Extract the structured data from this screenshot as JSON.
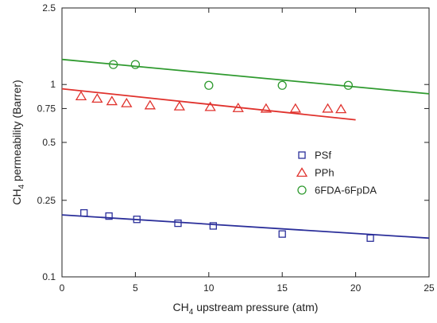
{
  "chart_data": {
    "type": "scatter",
    "xlabel": {
      "main": "CH",
      "sub": "4",
      "rest": " upstream pressure (atm)"
    },
    "ylabel": {
      "main": "CH",
      "sub": "4",
      "rest": " permeability (Barrer)"
    },
    "xlim": [
      0,
      25
    ],
    "ylim": [
      0.1,
      2.5
    ],
    "yscale": "log",
    "x_ticks": [
      0,
      5,
      10,
      15,
      20,
      25
    ],
    "x_tick_labels": [
      "0",
      "5",
      "10",
      "15",
      "20",
      "25"
    ],
    "y_ticks": [
      0.1,
      0.25,
      0.5,
      0.75,
      1,
      2.5
    ],
    "y_tick_labels": [
      "0.1",
      "0.25",
      "0.5",
      "0.75",
      "1",
      "2.5"
    ],
    "grid": false,
    "legend_position": "right-center",
    "series": [
      {
        "name": "PSf",
        "marker": "square",
        "color": "#2b2f9a",
        "points": [
          [
            1.5,
            0.215
          ],
          [
            3.2,
            0.207
          ],
          [
            5.1,
            0.199
          ],
          [
            7.9,
            0.19
          ],
          [
            10.3,
            0.184
          ],
          [
            15.0,
            0.167
          ],
          [
            21.0,
            0.159
          ]
        ],
        "fit": [
          [
            0,
            0.21
          ],
          [
            25,
            0.159
          ]
        ]
      },
      {
        "name": "PPh",
        "marker": "triangle",
        "color": "#e0322d",
        "points": [
          [
            1.3,
            0.87
          ],
          [
            2.4,
            0.845
          ],
          [
            3.4,
            0.82
          ],
          [
            4.4,
            0.8
          ],
          [
            6.0,
            0.78
          ],
          [
            8.0,
            0.77
          ],
          [
            10.1,
            0.765
          ],
          [
            12.0,
            0.755
          ],
          [
            13.9,
            0.75
          ],
          [
            15.9,
            0.75
          ],
          [
            18.1,
            0.75
          ],
          [
            19.0,
            0.745
          ]
        ],
        "fit": [
          [
            0,
            0.95
          ],
          [
            20,
            0.655
          ]
        ]
      },
      {
        "name": "6FDA-6FpDA",
        "marker": "circle",
        "color": "#2f9a2f",
        "points": [
          [
            3.5,
            1.27
          ],
          [
            5.0,
            1.27
          ],
          [
            10.0,
            0.99
          ],
          [
            15.0,
            0.99
          ],
          [
            19.5,
            0.99
          ]
        ],
        "fit": [
          [
            0,
            1.35
          ],
          [
            25,
            0.895
          ]
        ]
      }
    ]
  }
}
